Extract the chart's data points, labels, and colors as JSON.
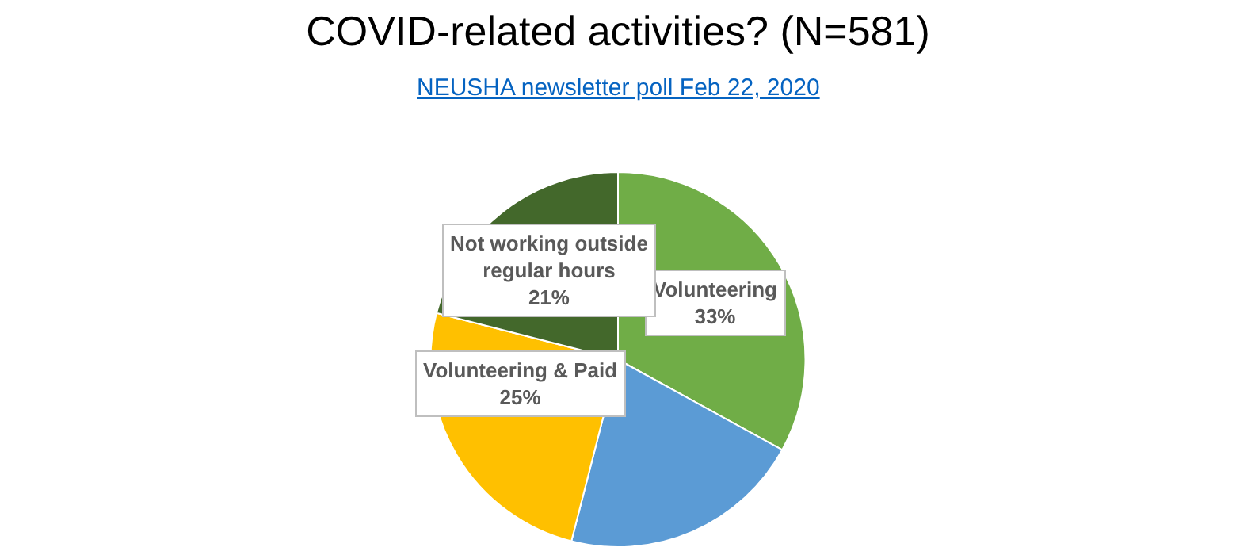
{
  "chart_data": {
    "type": "pie",
    "title": "COVID-related activities? (N=581)",
    "subtitle": "NEUSHA newsletter poll Feb 22, 2020",
    "categories": [
      "Volunteering",
      null,
      "Volunteering & Paid",
      "Not working outside regular hours"
    ],
    "values": [
      33,
      21,
      25,
      21
    ],
    "value_labels": [
      "33%",
      null,
      "25%",
      "21%"
    ],
    "colors": [
      "#70ad47",
      "#5b9bd5",
      "#ffc000",
      "#43682b"
    ],
    "legend": false
  }
}
